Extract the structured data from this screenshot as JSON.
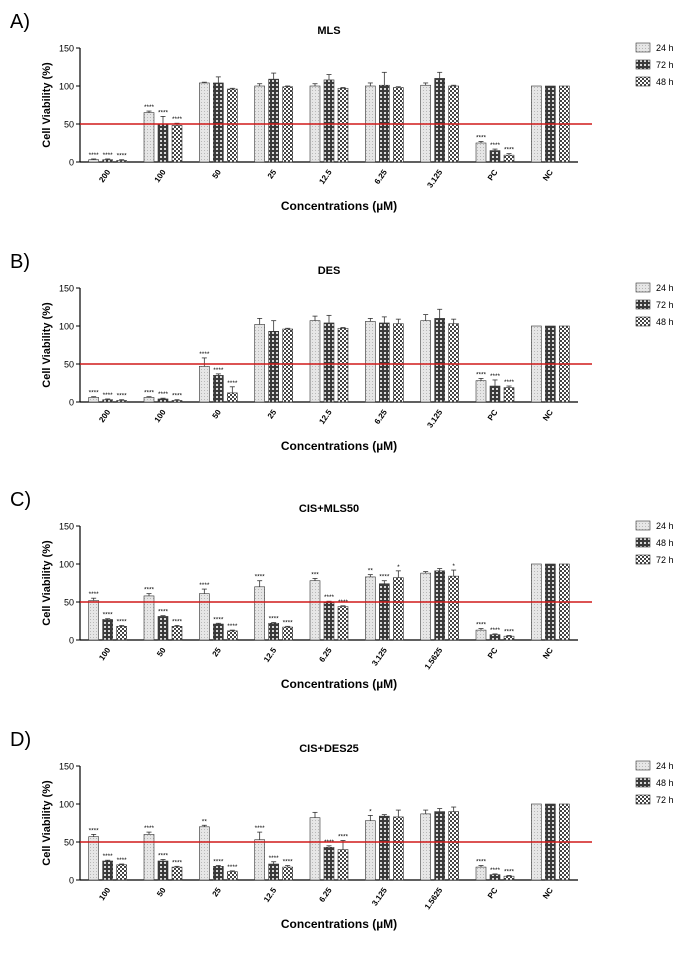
{
  "legend_labels": [
    "24 h",
    "72 h",
    "48 h"
  ],
  "chart_data": [
    {
      "panel_label": "A)",
      "type": "bar",
      "title": "MLS",
      "xlabel": "Concentrations (µM)",
      "ylabel": "Cell Viability (%)",
      "ylim": [
        0,
        150
      ],
      "yticks": [
        "0",
        "50",
        "100",
        "150"
      ],
      "threshold": 50,
      "threshold_color": "#d11a1a",
      "legend_position": "top-right",
      "categories": [
        "200",
        "100",
        "50",
        "25",
        "12.5",
        "6.25",
        "3.125",
        "PC",
        "NC"
      ],
      "series": [
        {
          "name": "24 h",
          "pattern": "light",
          "values": [
            3,
            65,
            104,
            100,
            100,
            100,
            101,
            25,
            100
          ],
          "errors": [
            1,
            2,
            1,
            3,
            3,
            4,
            3,
            2,
            0
          ],
          "sig": [
            "****",
            "****",
            "",
            "",
            "",
            "",
            "",
            "****",
            ""
          ]
        },
        {
          "name": "72 h",
          "pattern": "dark",
          "values": [
            3,
            50,
            104,
            109,
            108,
            101,
            110,
            15,
            100
          ],
          "errors": [
            1,
            10,
            8,
            8,
            7,
            17,
            8,
            2,
            0
          ],
          "sig": [
            "****",
            "****",
            "",
            "",
            "",
            "",
            "",
            "****",
            ""
          ]
        },
        {
          "name": "48 h",
          "pattern": "check",
          "values": [
            2,
            48,
            96,
            99,
            97,
            98,
            100,
            9,
            100
          ],
          "errors": [
            1,
            3,
            1,
            1,
            1,
            1,
            1,
            2,
            0
          ],
          "sig": [
            "****",
            "****",
            "",
            "",
            "",
            "",
            "",
            "****",
            ""
          ]
        }
      ]
    },
    {
      "panel_label": "B)",
      "type": "bar",
      "title": "DES",
      "xlabel": "Concentrations (µM)",
      "ylabel": "Cell Viability (%)",
      "ylim": [
        0,
        150
      ],
      "yticks": [
        "0",
        "50",
        "100",
        "150"
      ],
      "threshold": 50,
      "threshold_color": "#d11a1a",
      "legend_position": "top-right",
      "categories": [
        "200",
        "100",
        "50",
        "25",
        "12.5",
        "6.25",
        "3.125",
        "PC",
        "NC"
      ],
      "series": [
        {
          "name": "24 h",
          "pattern": "light",
          "values": [
            6,
            6,
            47,
            102,
            107,
            106,
            107,
            28,
            100
          ],
          "errors": [
            1,
            1,
            11,
            8,
            6,
            4,
            8,
            3,
            0
          ],
          "sig": [
            "****",
            "****",
            "****",
            "",
            "",
            "",
            "",
            "****",
            ""
          ]
        },
        {
          "name": "72 h",
          "pattern": "dark",
          "values": [
            3,
            4,
            35,
            93,
            104,
            104,
            110,
            21,
            100
          ],
          "errors": [
            1,
            1,
            2,
            14,
            10,
            8,
            12,
            8,
            0
          ],
          "sig": [
            "****",
            "****",
            "****",
            "",
            "",
            "",
            "",
            "****",
            ""
          ]
        },
        {
          "name": "48 h",
          "pattern": "check",
          "values": [
            2,
            2,
            12,
            96,
            97,
            103,
            103,
            19,
            100
          ],
          "errors": [
            1,
            1,
            8,
            1,
            1,
            6,
            6,
            2,
            0
          ],
          "sig": [
            "****",
            "****",
            "****",
            "",
            "",
            "",
            "",
            "****",
            ""
          ]
        }
      ]
    },
    {
      "panel_label": "C)",
      "type": "bar",
      "title": "CIS+MLS50",
      "xlabel": "Concentrations (µM)",
      "ylabel": "Cell Viability (%)",
      "ylim": [
        0,
        150
      ],
      "yticks": [
        "0",
        "50",
        "100",
        "150"
      ],
      "threshold": 50,
      "threshold_color": "#d11a1a",
      "legend_position": "top-right",
      "legend_labels": [
        "24 h",
        "48 h",
        "72 h"
      ],
      "categories": [
        "100",
        "50",
        "25",
        "12.5",
        "6.25",
        "3.125",
        "1.5625",
        "PC",
        "NC"
      ],
      "series": [
        {
          "name": "24 h",
          "pattern": "light",
          "values": [
            52,
            58,
            61,
            70,
            78,
            83,
            88,
            13,
            100
          ],
          "errors": [
            3,
            3,
            6,
            8,
            3,
            3,
            2,
            2,
            0
          ],
          "sig": [
            "****",
            "****",
            "****",
            "****",
            "***",
            "**",
            "",
            "****",
            ""
          ]
        },
        {
          "name": "48 h",
          "pattern": "dark",
          "values": [
            27,
            31,
            21,
            22,
            49,
            74,
            91,
            7,
            100
          ],
          "errors": [
            1,
            1,
            1,
            1,
            2,
            4,
            3,
            1,
            0
          ],
          "sig": [
            "****",
            "****",
            "****",
            "****",
            "****",
            "****",
            "",
            "****",
            ""
          ]
        },
        {
          "name": "72 h",
          "pattern": "check",
          "values": [
            18,
            18,
            12,
            17,
            44,
            82,
            84,
            5,
            100
          ],
          "errors": [
            1,
            1,
            1,
            1,
            1,
            9,
            8,
            1,
            0
          ],
          "sig": [
            "****",
            "****",
            "****",
            "****",
            "****",
            "*",
            "*",
            "****",
            ""
          ]
        }
      ]
    },
    {
      "panel_label": "D)",
      "type": "bar",
      "title": "CIS+DES25",
      "xlabel": "Concentrations (µM)",
      "ylabel": "Cell Viability (%)",
      "ylim": [
        0,
        150
      ],
      "yticks": [
        "0",
        "50",
        "100",
        "150"
      ],
      "threshold": 50,
      "threshold_color": "#d11a1a",
      "legend_position": "top-right",
      "legend_labels": [
        "24 h",
        "48 h",
        "72 h"
      ],
      "categories": [
        "100",
        "50",
        "25",
        "12.5",
        "6.25",
        "3.125",
        "1.5625",
        "PC",
        "NC"
      ],
      "series": [
        {
          "name": "24 h",
          "pattern": "light",
          "values": [
            57,
            60,
            70,
            53,
            82,
            78,
            87,
            17,
            100
          ],
          "errors": [
            3,
            3,
            2,
            10,
            7,
            7,
            5,
            2,
            0
          ],
          "sig": [
            "****",
            "****",
            "**",
            "****",
            "",
            "*",
            "",
            "****",
            ""
          ]
        },
        {
          "name": "48 h",
          "pattern": "dark",
          "values": [
            25,
            25,
            18,
            21,
            43,
            84,
            90,
            7,
            100
          ],
          "errors": [
            1,
            2,
            1,
            3,
            2,
            2,
            4,
            1,
            0
          ],
          "sig": [
            "****",
            "****",
            "****",
            "****",
            "****",
            "",
            "",
            "****",
            ""
          ]
        },
        {
          "name": "72 h",
          "pattern": "check",
          "values": [
            20,
            17,
            11,
            17,
            40,
            83,
            90,
            5,
            100
          ],
          "errors": [
            1,
            1,
            1,
            2,
            12,
            9,
            6,
            1,
            0
          ],
          "sig": [
            "****",
            "****",
            "****",
            "****",
            "****",
            "",
            "",
            "****",
            ""
          ]
        }
      ]
    }
  ]
}
